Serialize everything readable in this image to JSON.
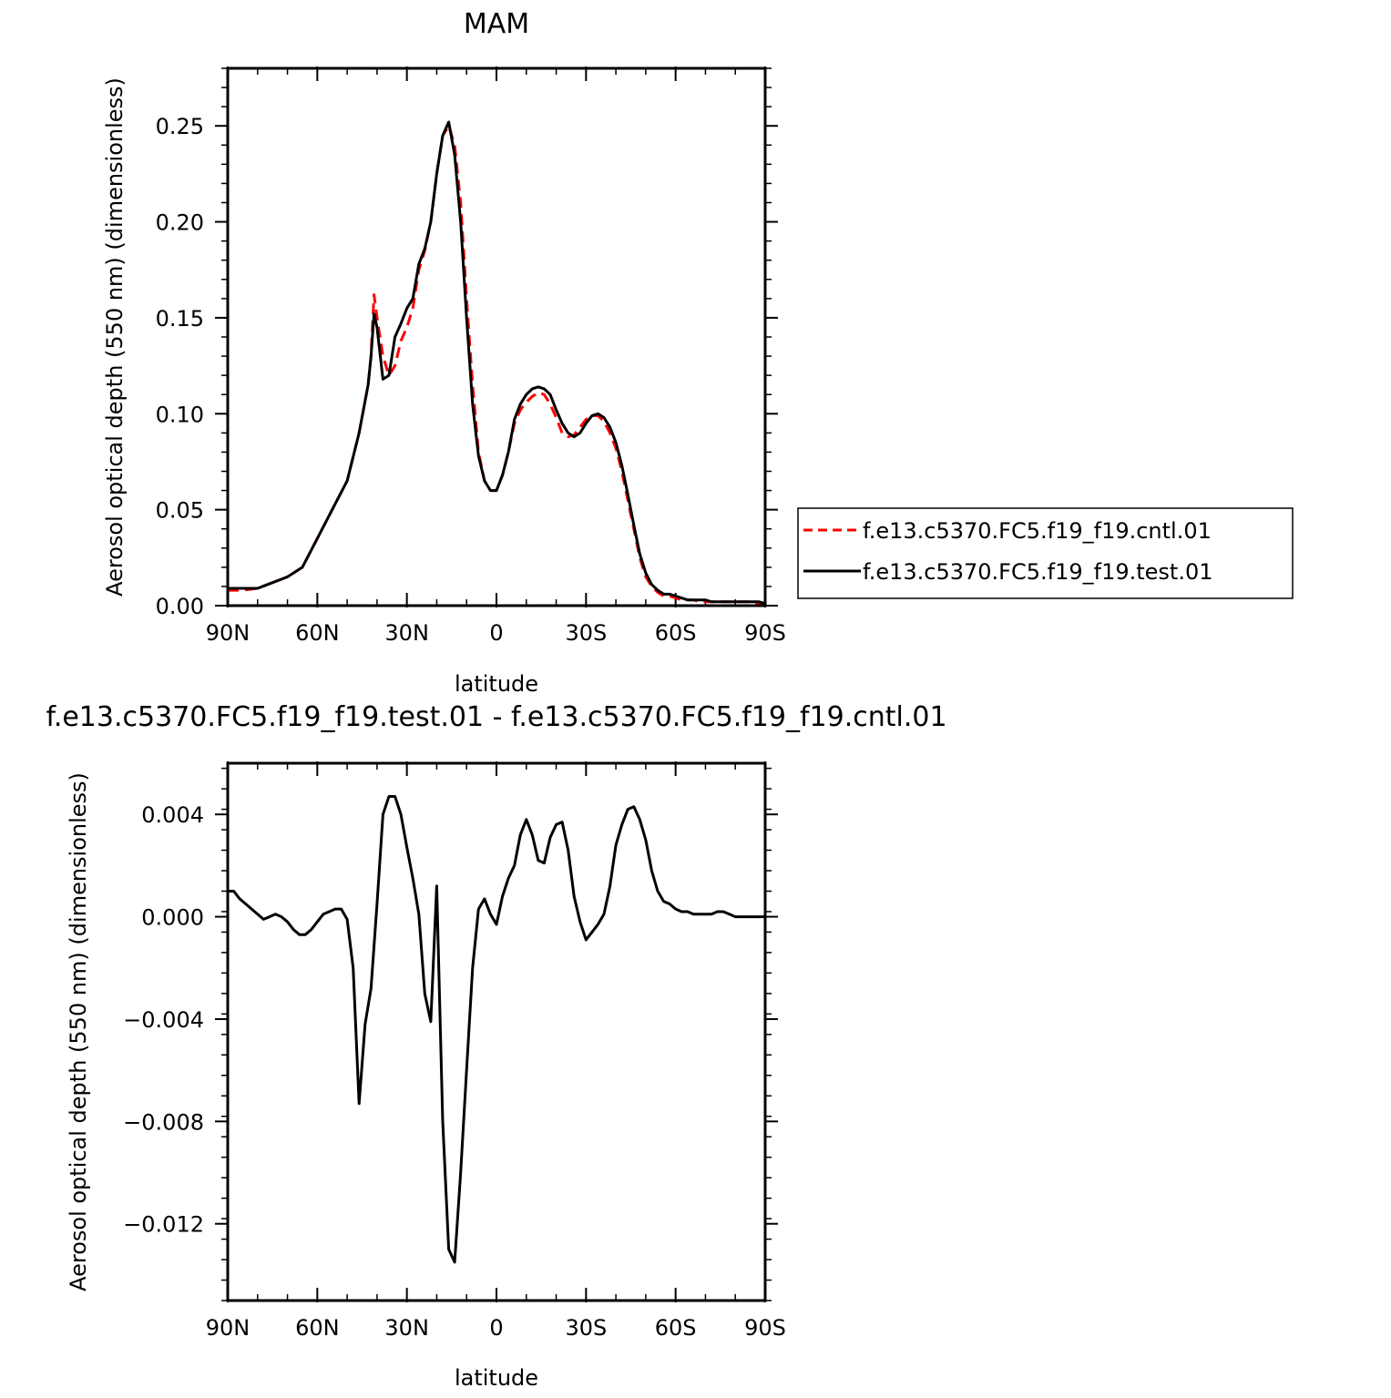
{
  "chart_data": [
    {
      "type": "line",
      "title": "MAM",
      "xlabel": "latitude",
      "ylabel": "Aerosol optical depth (550 nm) (dimensionless)",
      "x_ticks": [
        90,
        60,
        30,
        0,
        -30,
        -60,
        -90
      ],
      "x_tick_labels": [
        "90N",
        "60N",
        "30N",
        "0",
        "30S",
        "60S",
        "90S"
      ],
      "xlim": [
        90,
        -90
      ],
      "y_ticks": [
        0.0,
        0.05,
        0.1,
        0.15,
        0.2,
        0.25
      ],
      "y_tick_labels": [
        "0.00",
        "0.05",
        "0.10",
        "0.15",
        "0.20",
        "0.25"
      ],
      "ylim": [
        0.0,
        0.28
      ],
      "legend_position": "right",
      "series": [
        {
          "name": "f.e13.c5370.FC5.f19_f19.cntl.01",
          "color": "#ff0000",
          "style": "dashed",
          "x": [
            90,
            85,
            80,
            75,
            70,
            65,
            60,
            55,
            50,
            46,
            43,
            42,
            41,
            40,
            38,
            36,
            34,
            32,
            30,
            28,
            26,
            24,
            22,
            20,
            18,
            16,
            14,
            12,
            10,
            8,
            6,
            4,
            2,
            0,
            -2,
            -4,
            -6,
            -8,
            -10,
            -12,
            -14,
            -16,
            -18,
            -20,
            -22,
            -24,
            -26,
            -28,
            -30,
            -32,
            -34,
            -36,
            -38,
            -40,
            -42,
            -44,
            -46,
            -48,
            -50,
            -52,
            -54,
            -56,
            -58,
            -60,
            -62,
            -64,
            -66,
            -68,
            -70,
            -72,
            -74,
            -76,
            -78,
            -80,
            -82,
            -84,
            -86,
            -88,
            -90
          ],
          "values": [
            0.008,
            0.008,
            0.009,
            0.012,
            0.015,
            0.02,
            0.035,
            0.05,
            0.065,
            0.09,
            0.115,
            0.13,
            0.162,
            0.15,
            0.13,
            0.12,
            0.125,
            0.138,
            0.145,
            0.155,
            0.175,
            0.185,
            0.2,
            0.225,
            0.245,
            0.25,
            0.24,
            0.21,
            0.16,
            0.115,
            0.08,
            0.065,
            0.06,
            0.06,
            0.068,
            0.08,
            0.095,
            0.102,
            0.106,
            0.109,
            0.111,
            0.11,
            0.105,
            0.098,
            0.09,
            0.088,
            0.089,
            0.093,
            0.097,
            0.099,
            0.099,
            0.096,
            0.09,
            0.082,
            0.07,
            0.055,
            0.04,
            0.025,
            0.015,
            0.01,
            0.007,
            0.005,
            0.005,
            0.004,
            0.003,
            0.003,
            0.003,
            0.002,
            0.002,
            0.002,
            0.002,
            0.002,
            0.002,
            0.002,
            0.002,
            0.002,
            0.002,
            0.001,
            0.001
          ]
        },
        {
          "name": "f.e13.c5370.FC5.f19_f19.test.01",
          "color": "#000000",
          "style": "solid",
          "x": [
            90,
            85,
            80,
            75,
            70,
            65,
            60,
            55,
            50,
            46,
            43,
            42,
            41,
            40,
            38,
            36,
            34,
            32,
            30,
            28,
            26,
            24,
            22,
            20,
            18,
            16,
            14,
            12,
            10,
            8,
            6,
            4,
            2,
            0,
            -2,
            -4,
            -6,
            -8,
            -10,
            -12,
            -14,
            -16,
            -18,
            -20,
            -22,
            -24,
            -26,
            -28,
            -30,
            -32,
            -34,
            -36,
            -38,
            -40,
            -42,
            -44,
            -46,
            -48,
            -50,
            -52,
            -54,
            -56,
            -58,
            -60,
            -62,
            -64,
            -66,
            -68,
            -70,
            -72,
            -74,
            -76,
            -78,
            -80,
            -82,
            -84,
            -86,
            -88,
            -90
          ],
          "values": [
            0.009,
            0.009,
            0.009,
            0.012,
            0.015,
            0.02,
            0.035,
            0.05,
            0.065,
            0.09,
            0.115,
            0.13,
            0.152,
            0.145,
            0.118,
            0.12,
            0.14,
            0.147,
            0.155,
            0.16,
            0.178,
            0.186,
            0.2,
            0.225,
            0.245,
            0.252,
            0.235,
            0.2,
            0.15,
            0.105,
            0.078,
            0.065,
            0.06,
            0.06,
            0.068,
            0.08,
            0.097,
            0.105,
            0.11,
            0.113,
            0.114,
            0.113,
            0.11,
            0.102,
            0.095,
            0.09,
            0.088,
            0.09,
            0.095,
            0.099,
            0.1,
            0.098,
            0.093,
            0.085,
            0.073,
            0.058,
            0.042,
            0.027,
            0.017,
            0.011,
            0.008,
            0.006,
            0.006,
            0.005,
            0.004,
            0.003,
            0.003,
            0.003,
            0.003,
            0.002,
            0.002,
            0.002,
            0.002,
            0.002,
            0.002,
            0.002,
            0.002,
            0.002,
            0.001
          ]
        }
      ]
    },
    {
      "type": "line",
      "title": "f.e13.c5370.FC5.f19_f19.test.01 - f.e13.c5370.FC5.f19_f19.cntl.01",
      "xlabel": "latitude",
      "ylabel": "Aerosol optical depth (550 nm) (dimensionless)",
      "x_ticks": [
        90,
        60,
        30,
        0,
        -30,
        -60,
        -90
      ],
      "x_tick_labels": [
        "90N",
        "60N",
        "30N",
        "0",
        "30S",
        "60S",
        "90S"
      ],
      "xlim": [
        90,
        -90
      ],
      "y_ticks": [
        0.004,
        0.0,
        -0.004,
        -0.008,
        -0.012
      ],
      "y_tick_labels": [
        "0.004",
        "0.000",
        "−0.004",
        "−0.008",
        "−0.012"
      ],
      "ylim": [
        -0.015,
        0.006
      ],
      "series": [
        {
          "color": "#000000",
          "style": "solid",
          "x": [
            90,
            88,
            86,
            84,
            82,
            80,
            78,
            76,
            74,
            72,
            70,
            68,
            66,
            64,
            62,
            60,
            58,
            56,
            54,
            52,
            50,
            48,
            46,
            44,
            42,
            40,
            38,
            36,
            34,
            32,
            30,
            28,
            26,
            24,
            22,
            20,
            18,
            16,
            14,
            12,
            10,
            8,
            6,
            4,
            2,
            0,
            -2,
            -4,
            -6,
            -8,
            -10,
            -12,
            -14,
            -16,
            -18,
            -20,
            -22,
            -24,
            -26,
            -28,
            -30,
            -32,
            -34,
            -36,
            -38,
            -40,
            -42,
            -44,
            -46,
            -48,
            -50,
            -52,
            -54,
            -56,
            -58,
            -60,
            -62,
            -64,
            -66,
            -68,
            -70,
            -72,
            -74,
            -76,
            -78,
            -80,
            -82,
            -84,
            -86,
            -88,
            -90
          ],
          "values": [
            0.001,
            0.001,
            0.0007,
            0.0005,
            0.0003,
            0.0001,
            -0.0001,
            0.0,
            0.0001,
            0.0,
            -0.0002,
            -0.0005,
            -0.0007,
            -0.0007,
            -0.0005,
            -0.0002,
            0.0001,
            0.0002,
            0.0003,
            0.0003,
            -0.0001,
            -0.002,
            -0.0073,
            -0.0042,
            -0.0028,
            0.0005,
            0.004,
            0.0047,
            0.0047,
            0.004,
            0.0027,
            0.0015,
            0.0001,
            -0.003,
            -0.0041,
            0.0012,
            -0.008,
            -0.013,
            -0.0135,
            -0.01,
            -0.006,
            -0.002,
            0.0003,
            0.0007,
            0.0001,
            -0.0003,
            0.0008,
            0.0015,
            0.002,
            0.0032,
            0.0038,
            0.0032,
            0.0022,
            0.0021,
            0.0031,
            0.0036,
            0.0037,
            0.0026,
            0.0008,
            -0.0002,
            -0.0009,
            -0.0006,
            -0.0003,
            0.0001,
            0.0012,
            0.0028,
            0.0036,
            0.0042,
            0.0043,
            0.0038,
            0.003,
            0.0018,
            0.001,
            0.0006,
            0.0005,
            0.0003,
            0.0002,
            0.0002,
            0.0001,
            0.0001,
            0.0001,
            0.0001,
            0.0002,
            0.0002,
            0.0001,
            0.0,
            0.0,
            0.0,
            0.0,
            0.0,
            0.0
          ]
        }
      ]
    }
  ]
}
